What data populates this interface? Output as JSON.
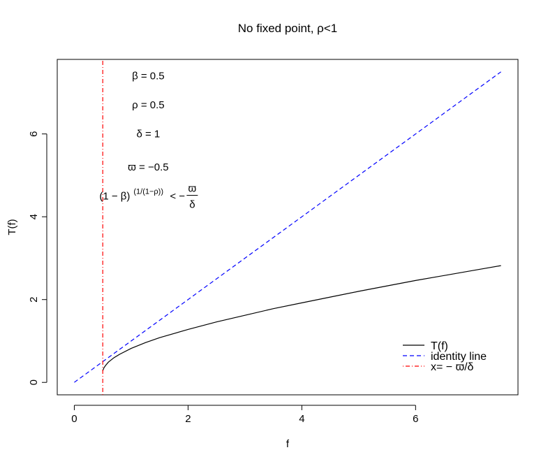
{
  "chart_data": {
    "type": "line",
    "title": "No fixed point, ρ<1",
    "xlabel": "f",
    "ylabel": "T(f)",
    "xlim": [
      -0.3,
      7.8
    ],
    "ylim": [
      -0.3,
      7.8
    ],
    "xticks": [
      0,
      2,
      4,
      6
    ],
    "yticks": [
      0,
      2,
      4,
      6
    ],
    "grid": false,
    "legend_position": "bottom-right",
    "series": [
      {
        "name": "T(f)",
        "style": "solid",
        "color": "#000000",
        "x": [
          0.5,
          0.52,
          0.55,
          0.6,
          0.7,
          0.8,
          1.0,
          1.25,
          1.5,
          2.0,
          2.5,
          3.0,
          3.5,
          4.0,
          4.5,
          5.0,
          5.5,
          6.0,
          6.5,
          7.0,
          7.5
        ],
        "y": [
          0.28,
          0.35,
          0.41,
          0.49,
          0.6,
          0.68,
          0.82,
          0.96,
          1.08,
          1.28,
          1.46,
          1.62,
          1.78,
          1.92,
          2.06,
          2.2,
          2.33,
          2.46,
          2.58,
          2.7,
          2.82
        ]
      },
      {
        "name": "identity line",
        "style": "dashed",
        "color": "#0000ff",
        "x": [
          0,
          7.5
        ],
        "y": [
          0,
          7.5
        ]
      },
      {
        "name": "x= − ϖ/δ",
        "style": "dotdash",
        "color": "#ff0000",
        "x": [
          0.5,
          0.5
        ],
        "y": [
          -0.3,
          7.8
        ]
      }
    ],
    "annotations": [
      {
        "text": "β = 0.5",
        "x": 1.3,
        "y": 7.4
      },
      {
        "text": "ρ = 0.5",
        "x": 1.3,
        "y": 6.7
      },
      {
        "text": "δ = 1",
        "x": 1.3,
        "y": 6.0
      },
      {
        "text": "ϖ = −0.5",
        "x": 1.3,
        "y": 5.2
      }
    ],
    "formula": {
      "base": "(1 − β)",
      "exponent": "(1/(1−ρ))",
      "relation": "< −",
      "numerator": "ϖ",
      "denominator": "δ",
      "x": 1.3,
      "y": 4.5
    }
  }
}
